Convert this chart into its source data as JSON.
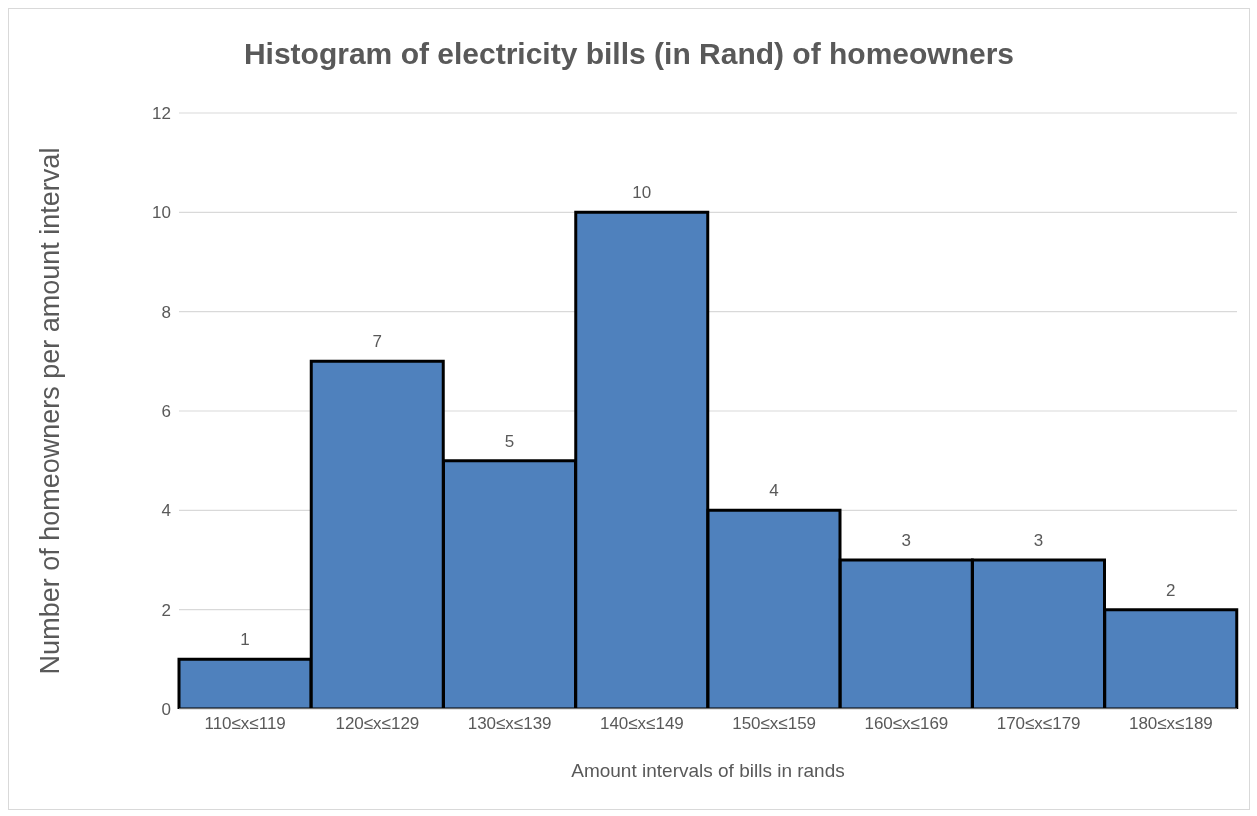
{
  "chart_data": {
    "type": "bar",
    "title": "Histogram of electricity bills (in Rand) of homeowners",
    "xlabel": "Amount intervals of bills in rands",
    "ylabel": "Number of homeowners per amount interval",
    "categories": [
      "110≤x≤119",
      "120≤x≤129",
      "130≤x≤139",
      "140≤x≤149",
      "150≤x≤159",
      "160≤x≤169",
      "170≤x≤179",
      "180≤x≤189"
    ],
    "values": [
      1,
      7,
      5,
      10,
      4,
      3,
      3,
      2
    ],
    "color": "#4f81bd",
    "ylim": [
      0,
      12
    ],
    "yticks": [
      0,
      2,
      4,
      6,
      8,
      10,
      12
    ],
    "grid": "y",
    "data_labels": true
  }
}
